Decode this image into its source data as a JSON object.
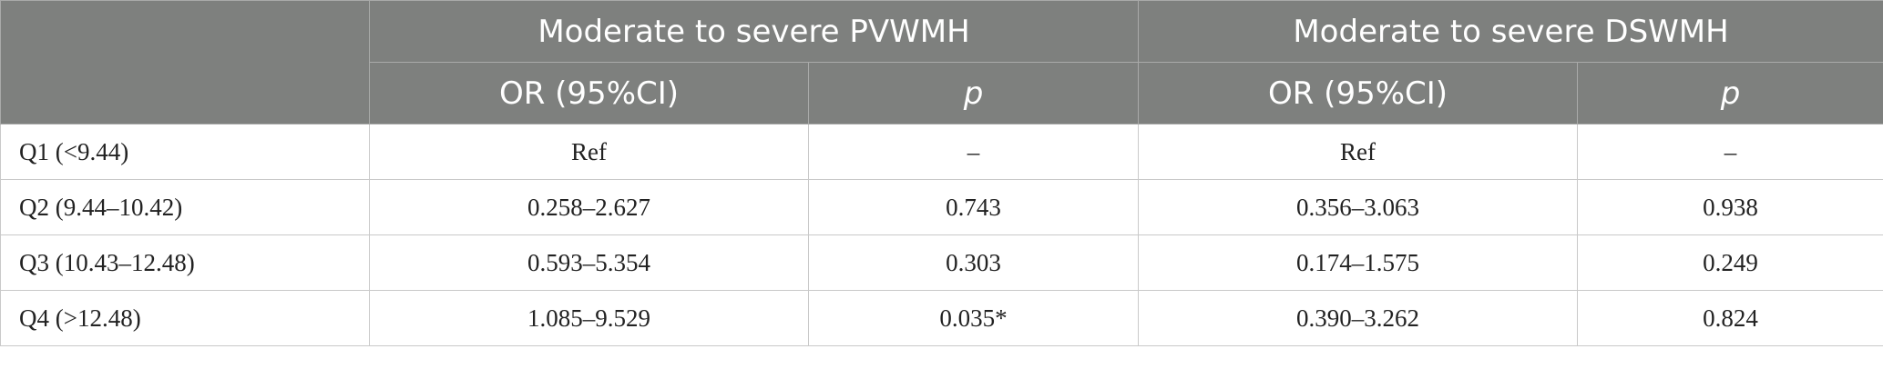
{
  "header": {
    "groups": [
      "Moderate to severe PVWMH",
      "Moderate to severe DSWMH"
    ],
    "subheaders": [
      "OR (95%CI)",
      "p",
      "OR (95%CI)",
      "p"
    ]
  },
  "rows": [
    {
      "label": "Q1 (<9.44)",
      "pv_or": "Ref",
      "pv_p": "–",
      "ds_or": "Ref",
      "ds_p": "–"
    },
    {
      "label": "Q2 (9.44–10.42)",
      "pv_or": "0.258–2.627",
      "pv_p": "0.743",
      "ds_or": "0.356–3.063",
      "ds_p": "0.938"
    },
    {
      "label": "Q3 (10.43–12.48)",
      "pv_or": "0.593–5.354",
      "pv_p": "0.303",
      "ds_or": "0.174–1.575",
      "ds_p": "0.249"
    },
    {
      "label": "Q4 (>12.48)",
      "pv_or": "1.085–9.529",
      "pv_p": "0.035*",
      "ds_or": "0.390–3.262",
      "ds_p": "0.824"
    }
  ]
}
